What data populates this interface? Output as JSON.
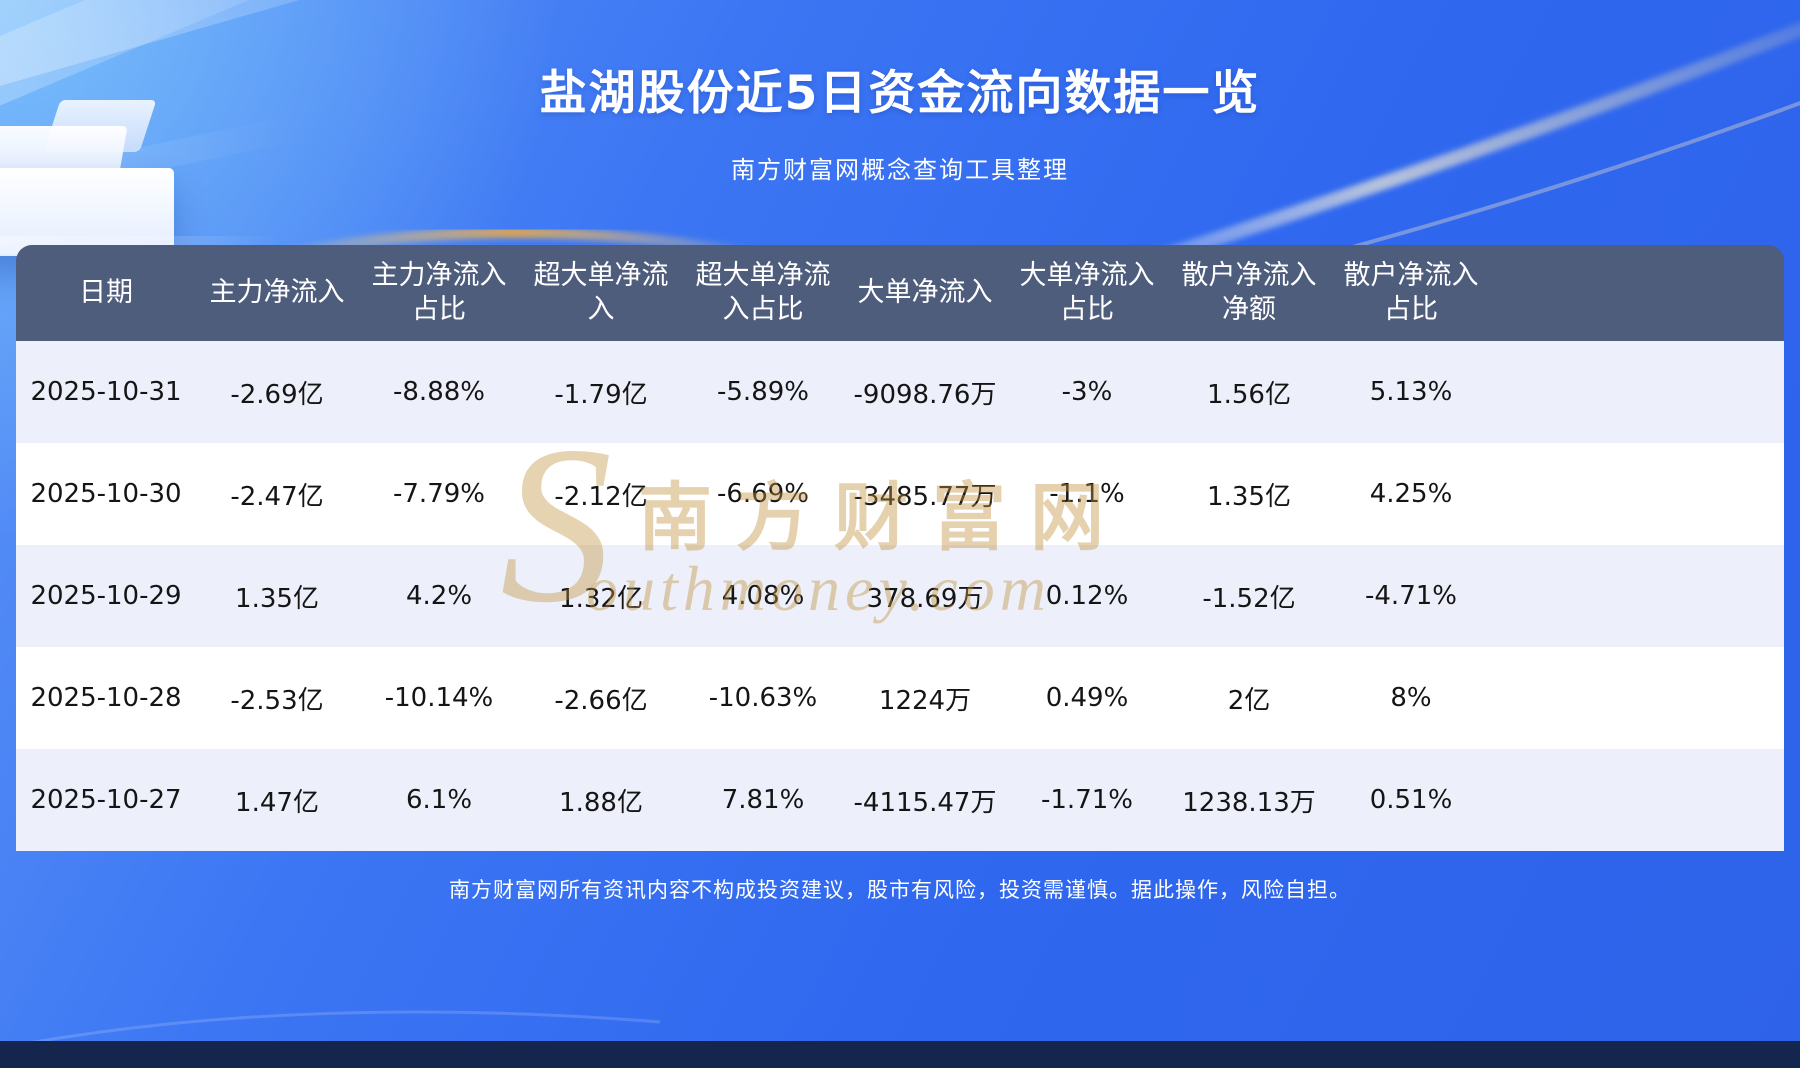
{
  "header": {
    "title": "盐湖股份近5日资金流向数据一览",
    "subtitle": "南方财富网概念查询工具整理"
  },
  "watermark": {
    "initial": "S",
    "cn": "南方财富网",
    "en": "outhmoney.com"
  },
  "chart_data": {
    "type": "table",
    "title": "盐湖股份近5日资金流向数据一览",
    "columns": [
      "日期",
      "主力净流入",
      "主力净流入占比",
      "超大单净流入",
      "超大单净流入占比",
      "大单净流入",
      "大单净流入占比",
      "散户净流入净额",
      "散户净流入占比"
    ],
    "rows": [
      [
        "2025-10-31",
        "-2.69亿",
        "-8.88%",
        "-1.79亿",
        "-5.89%",
        "-9098.76万",
        "-3%",
        "1.56亿",
        "5.13%"
      ],
      [
        "2025-10-30",
        "-2.47亿",
        "-7.79%",
        "-2.12亿",
        "-6.69%",
        "-3485.77万",
        "-1.1%",
        "1.35亿",
        "4.25%"
      ],
      [
        "2025-10-29",
        "1.35亿",
        "4.2%",
        "1.32亿",
        "4.08%",
        "378.69万",
        "0.12%",
        "-1.52亿",
        "-4.71%"
      ],
      [
        "2025-10-28",
        "-2.53亿",
        "-10.14%",
        "-2.66亿",
        "-10.63%",
        "1224万",
        "0.49%",
        "2亿",
        "8%"
      ],
      [
        "2025-10-27",
        "1.47亿",
        "6.1%",
        "1.88亿",
        "7.81%",
        "-4115.47万",
        "-1.71%",
        "1238.13万",
        "0.51%"
      ]
    ]
  },
  "footer": {
    "disclaimer": "南方财富网所有资讯内容不构成投资建议，股市有风险，投资需谨慎。据此操作，风险自担。"
  },
  "colors": {
    "background_blue": "#2f67ef",
    "table_header_bg": "#4f5d7d",
    "row_alt_bg": "#edf0fa",
    "row_bg": "#ffffff",
    "watermark_gold": "#c0923c",
    "bottom_bar_navy": "#14254e",
    "accent_gold_arc": "#f2ba50"
  }
}
